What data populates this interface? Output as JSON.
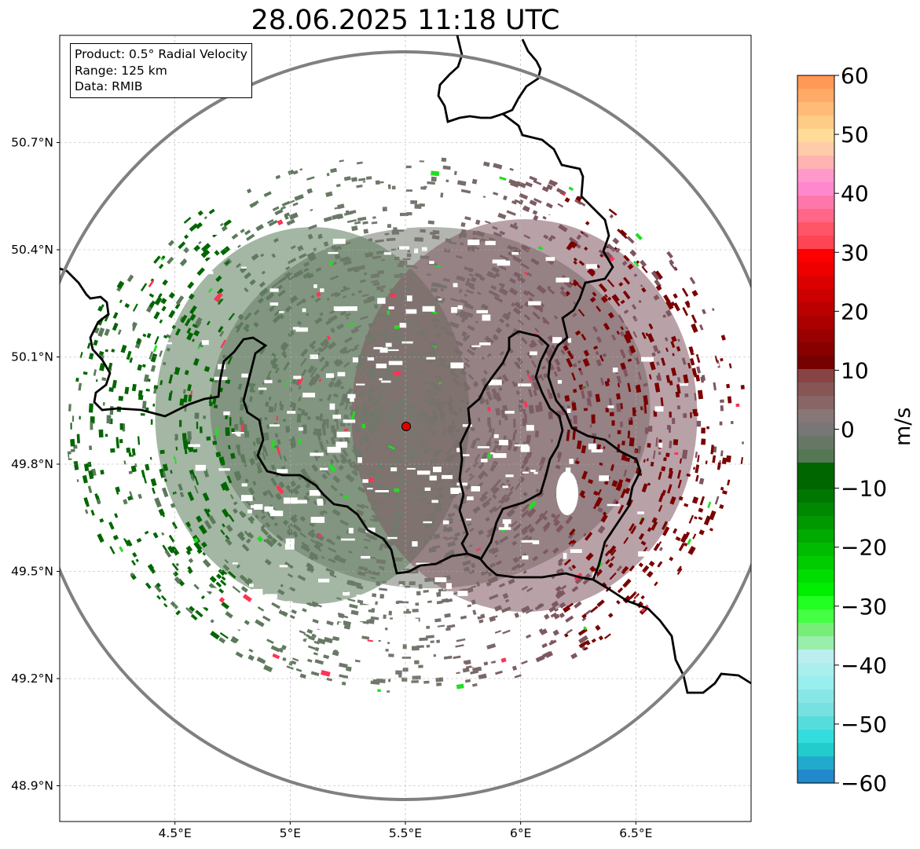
{
  "title": "28.06.2025 11:18 UTC",
  "info_box": {
    "product": "Product: 0.5° Radial Velocity",
    "range": "Range: 125 km",
    "data": "Data: RMIB"
  },
  "map": {
    "lon_range": [
      4.0,
      7.0
    ],
    "lat_range": [
      48.8,
      51.0
    ],
    "x_ticks": [
      {
        "value": 4.5,
        "label": "4.5°E"
      },
      {
        "value": 5.0,
        "label": "5°E"
      },
      {
        "value": 5.5,
        "label": "5.5°E"
      },
      {
        "value": 6.0,
        "label": "6°E"
      },
      {
        "value": 6.5,
        "label": "6.5°E"
      }
    ],
    "y_ticks": [
      {
        "value": 50.7,
        "label": "50.7°N"
      },
      {
        "value": 50.4,
        "label": "50.4°N"
      },
      {
        "value": 50.1,
        "label": "50.1°N"
      },
      {
        "value": 49.8,
        "label": "49.8°N"
      },
      {
        "value": 49.5,
        "label": "49.5°N"
      },
      {
        "value": 49.2,
        "label": "49.2°N"
      },
      {
        "value": 48.9,
        "label": "48.9°N"
      }
    ],
    "gridlines": true,
    "radar_site": {
      "lon": 5.505,
      "lat": 49.914,
      "color": "#e00000"
    },
    "range_ring_color": "#808080",
    "border_color": "#000000"
  },
  "colorbar": {
    "unit": "m/s",
    "min": -60,
    "max": 60,
    "ticks": [
      {
        "value": 60,
        "label": "60"
      },
      {
        "value": 50,
        "label": "50"
      },
      {
        "value": 40,
        "label": "40"
      },
      {
        "value": 30,
        "label": "30"
      },
      {
        "value": 20,
        "label": "20"
      },
      {
        "value": 10,
        "label": "10"
      },
      {
        "value": 0,
        "label": "0"
      },
      {
        "value": -10,
        "label": "−10"
      },
      {
        "value": -20,
        "label": "−20"
      },
      {
        "value": -30,
        "label": "−30"
      },
      {
        "value": -40,
        "label": "−40"
      },
      {
        "value": -50,
        "label": "−50"
      },
      {
        "value": -60,
        "label": "−60"
      }
    ],
    "bins_top_to_bottom": [
      "#ff9955",
      "#ffaa66",
      "#ffbb77",
      "#ffcc88",
      "#ffdd99",
      "#ffccaa",
      "#ffb3b3",
      "#ff99cc",
      "#ff88cc",
      "#ff77aa",
      "#ff6688",
      "#ff5566",
      "#ff4455",
      "#ff0000",
      "#ee0000",
      "#dd0000",
      "#cc0000",
      "#bb0000",
      "#aa0000",
      "#990000",
      "#880000",
      "#770000",
      "#884444",
      "#885555",
      "#886666",
      "#887777",
      "#777777",
      "#667766",
      "#557755",
      "#006600",
      "#006600",
      "#007700",
      "#008800",
      "#009900",
      "#00aa00",
      "#00bb00",
      "#00cc00",
      "#00dd00",
      "#00ee00",
      "#22ff22",
      "#44ff44",
      "#77ee77",
      "#99eeaa",
      "#bbeeee",
      "#aaeeee",
      "#99eeee",
      "#88e6e6",
      "#77e0e0",
      "#55dddd",
      "#33dddd",
      "#22cccc",
      "#22aacc",
      "#2288cc"
    ]
  },
  "legend_colors": {
    "strong_away": "#7a0000",
    "away": "#7e5560",
    "zero": "#75786f",
    "toward": "#5a7a5a",
    "strong_toward": "#006600"
  }
}
